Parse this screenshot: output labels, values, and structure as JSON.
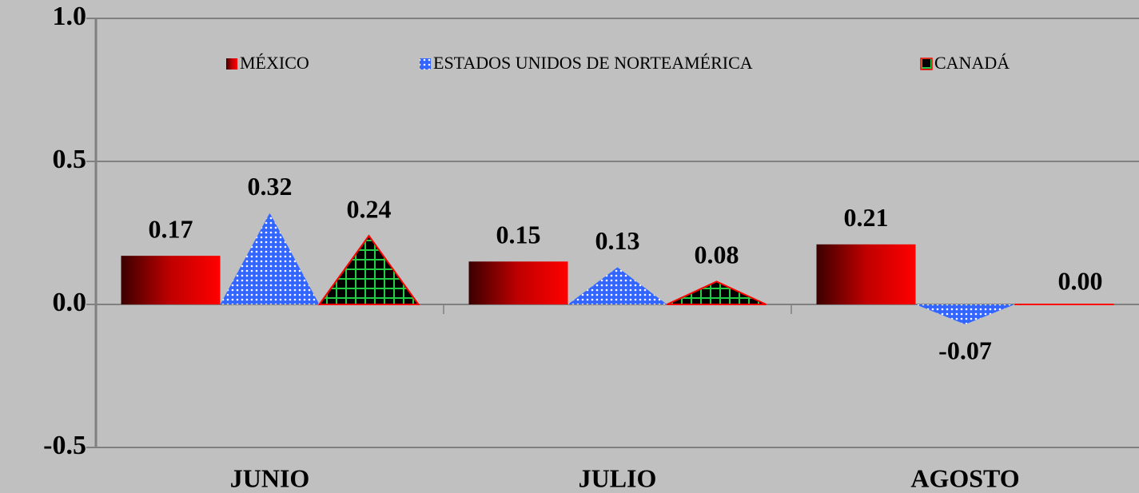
{
  "chart_data": {
    "type": "bar",
    "categories": [
      "JUNIO",
      "JULIO",
      "AGOSTO"
    ],
    "series": [
      {
        "name": "MÉXICO",
        "color": "#ff0000",
        "values": [
          0.17,
          0.15,
          0.21
        ]
      },
      {
        "name": "ESTADOS UNIDOS DE NORTEAMÉRICA",
        "color": "#3366ff",
        "values": [
          0.32,
          0.13,
          -0.07
        ]
      },
      {
        "name": "CANADÁ",
        "color": "#000000",
        "values": [
          0.24,
          0.08,
          0
        ],
        "value_labels": [
          "0.24",
          "0.08",
          "0.00"
        ]
      }
    ],
    "ylim": [
      -0.5,
      1.0
    ],
    "yticks": [
      {
        "value": -0.5,
        "label": "-0.5"
      },
      {
        "value": 0,
        "label": "0.0"
      },
      {
        "value": 0.5,
        "label": "0.5"
      },
      {
        "value": 1.0,
        "label": "1.0"
      }
    ],
    "grid": true
  }
}
